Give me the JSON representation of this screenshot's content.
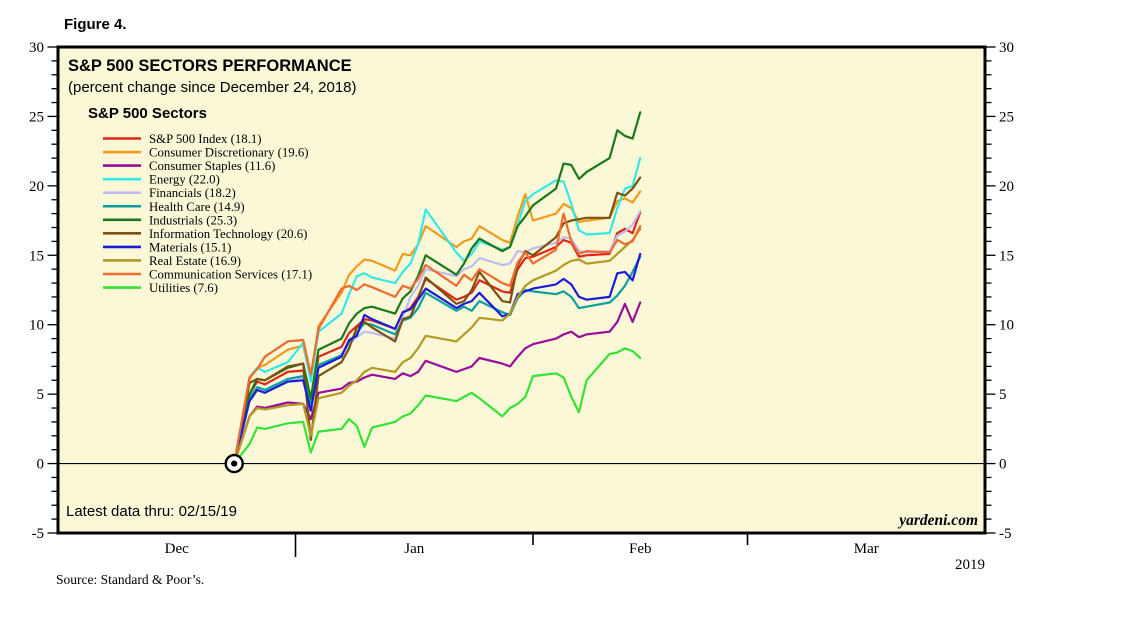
{
  "figure_label": "Figure 4.",
  "chart_data": {
    "type": "line",
    "title": "S&P 500 SECTORS PERFORMANCE",
    "subtitle": "(percent change since December 24, 2018)",
    "legend_title": "S&P 500 Sectors",
    "footnote": "Latest data thru: 02/15/19",
    "brand": "yardeni.com",
    "source": "Source: Standard & Poor’s.",
    "year_label": "2019",
    "background_color": "#FBF8D8",
    "grid": false,
    "legend_position": "top-left-inside",
    "y_axis": {
      "min": -5,
      "max": 30,
      "major_step": 5,
      "minor_step": 1,
      "major_labels": [
        -5,
        0,
        5,
        10,
        15,
        20,
        25,
        30
      ],
      "labels_both_sides": true
    },
    "x_axis": {
      "month_labels": [
        "Dec",
        "Jan",
        "Feb",
        "Mar"
      ],
      "month_label_day_centers": [
        15.5,
        46.5,
        76,
        105.5
      ],
      "month_boundary_days": [
        31,
        62,
        90
      ],
      "days_total": 121,
      "zero_line": 0
    },
    "origin_marker": {
      "date": "12/24",
      "value": 0
    },
    "x_trading_dates": [
      "12/24",
      "12/26",
      "12/27",
      "12/28",
      "12/31",
      "01/02",
      "01/03",
      "01/04",
      "01/07",
      "01/08",
      "01/09",
      "01/10",
      "01/11",
      "01/14",
      "01/15",
      "01/16",
      "01/17",
      "01/18",
      "01/22",
      "01/23",
      "01/24",
      "01/25",
      "01/28",
      "01/29",
      "01/30",
      "01/31",
      "02/01",
      "02/04",
      "02/05",
      "02/06",
      "02/07",
      "02/08",
      "02/11",
      "02/12",
      "02/13",
      "02/14",
      "02/15"
    ],
    "x_days": [
      23,
      25,
      26,
      27,
      30,
      32,
      33,
      34,
      37,
      38,
      39,
      40,
      41,
      44,
      45,
      46,
      47,
      48,
      52,
      53,
      54,
      55,
      58,
      59,
      60,
      61,
      62,
      65,
      66,
      67,
      68,
      69,
      72,
      73,
      74,
      75,
      76
    ],
    "series": [
      {
        "slug": "sp500-index",
        "name": "S&P 500 Index",
        "label": "S&P 500 Index (18.1)",
        "final": 18.1,
        "color": "#E02517",
        "values": [
          0,
          5.0,
          5.9,
          5.7,
          6.6,
          6.7,
          4.2,
          7.7,
          8.4,
          9.4,
          9.9,
          10.4,
          10.3,
          9.7,
          10.9,
          11.2,
          12.0,
          13.3,
          11.8,
          12.0,
          12.3,
          13.2,
          12.4,
          12.3,
          14.0,
          14.8,
          14.9,
          15.6,
          16.1,
          15.9,
          14.9,
          15.0,
          15.1,
          16.6,
          16.9,
          16.6,
          18.1
        ]
      },
      {
        "slug": "consumer-discretionary",
        "name": "Consumer Discretionary",
        "label": "Consumer Discretionary (19.6)",
        "final": 19.6,
        "color": "#F19A1B",
        "values": [
          0,
          6.1,
          6.9,
          7.1,
          8.2,
          8.5,
          6.1,
          9.9,
          12.3,
          13.6,
          14.2,
          14.7,
          14.6,
          13.9,
          15.1,
          15.0,
          15.8,
          17.1,
          15.6,
          16.0,
          16.2,
          17.1,
          16.1,
          15.9,
          17.8,
          19.4,
          17.5,
          18.0,
          18.7,
          18.4,
          17.4,
          17.5,
          17.7,
          18.9,
          19.1,
          18.8,
          19.6
        ]
      },
      {
        "slug": "consumer-staples",
        "name": "Consumer Staples",
        "label": "Consumer Staples (11.6)",
        "final": 11.6,
        "color": "#9A0C9A",
        "values": [
          0,
          3.4,
          4.1,
          4.0,
          4.4,
          4.3,
          3.2,
          5.1,
          5.4,
          5.8,
          5.9,
          6.2,
          6.4,
          6.1,
          6.5,
          6.3,
          6.6,
          7.4,
          6.6,
          6.8,
          7.0,
          7.6,
          7.2,
          7.0,
          7.7,
          8.3,
          8.6,
          9.0,
          9.3,
          9.5,
          9.1,
          9.3,
          9.5,
          10.2,
          11.5,
          10.2,
          11.6
        ]
      },
      {
        "slug": "energy",
        "name": "Energy",
        "label": "Energy (22.0)",
        "final": 22.0,
        "color": "#35E8E8",
        "values": [
          0,
          6.2,
          6.9,
          6.6,
          7.3,
          8.7,
          5.9,
          9.5,
          10.8,
          12.2,
          13.5,
          13.7,
          13.4,
          13.0,
          13.8,
          14.4,
          15.8,
          18.3,
          15.2,
          14.6,
          15.1,
          16.0,
          15.4,
          15.6,
          17.2,
          18.9,
          19.4,
          20.4,
          20.3,
          18.7,
          16.8,
          16.5,
          16.6,
          18.4,
          19.8,
          20.0,
          22.0
        ]
      },
      {
        "slug": "financials",
        "name": "Financials",
        "label": "Financials (18.2)",
        "final": 18.2,
        "color": "#BFBCF2",
        "values": [
          0,
          4.7,
          5.5,
          5.3,
          6.0,
          6.2,
          4.1,
          7.1,
          7.8,
          8.6,
          9.1,
          9.5,
          9.4,
          9.0,
          10.5,
          12.0,
          12.8,
          14.0,
          13.5,
          14.0,
          14.2,
          14.8,
          14.3,
          14.4,
          15.3,
          15.2,
          15.5,
          15.9,
          16.3,
          16.2,
          15.3,
          15.2,
          15.3,
          16.4,
          16.7,
          17.2,
          18.2
        ]
      },
      {
        "slug": "health-care",
        "name": "Health Care",
        "label": "Health Care (14.9)",
        "final": 14.9,
        "color": "#0AA0A0",
        "values": [
          0,
          4.7,
          5.5,
          5.3,
          6.1,
          6.3,
          4.4,
          7.1,
          7.8,
          8.8,
          9.4,
          10.1,
          10.0,
          9.3,
          10.3,
          10.5,
          11.2,
          12.3,
          11.0,
          11.3,
          11.0,
          11.7,
          10.9,
          10.7,
          11.9,
          12.5,
          12.4,
          12.2,
          12.4,
          12.0,
          11.2,
          11.3,
          11.6,
          12.1,
          12.8,
          13.8,
          14.9
        ]
      },
      {
        "slug": "industrials",
        "name": "Industrials",
        "label": "Industrials (25.3)",
        "final": 25.3,
        "color": "#1B781B",
        "values": [
          0,
          5.0,
          6.1,
          6.0,
          6.9,
          7.2,
          4.7,
          8.2,
          9.0,
          10.1,
          10.8,
          11.2,
          11.3,
          10.8,
          11.9,
          12.4,
          13.5,
          15.0,
          13.6,
          14.4,
          15.5,
          16.2,
          15.3,
          15.6,
          17.1,
          17.8,
          18.6,
          19.8,
          21.6,
          21.5,
          20.5,
          21.0,
          22.0,
          24.0,
          23.6,
          23.4,
          25.3
        ]
      },
      {
        "slug": "information-technology",
        "name": "Information Technology",
        "label": "Information Technology (20.6)",
        "final": 20.6,
        "color": "#7D5010",
        "values": [
          0,
          5.8,
          6.1,
          6.0,
          7.0,
          7.2,
          1.7,
          6.3,
          7.3,
          8.3,
          9.8,
          10.2,
          9.8,
          8.8,
          10.4,
          10.6,
          11.9,
          13.4,
          11.5,
          11.7,
          12.5,
          13.8,
          11.7,
          11.6,
          14.3,
          15.3,
          15.0,
          16.3,
          17.3,
          17.5,
          17.6,
          17.7,
          17.7,
          19.5,
          19.3,
          19.8,
          20.6
        ]
      },
      {
        "slug": "materials",
        "name": "Materials",
        "label": "Materials (15.1)",
        "final": 15.1,
        "color": "#1B1BD8",
        "values": [
          0,
          4.5,
          5.3,
          5.1,
          5.9,
          6.0,
          3.8,
          6.9,
          7.7,
          8.9,
          9.2,
          10.7,
          10.4,
          9.7,
          10.9,
          11.1,
          11.8,
          12.6,
          11.2,
          11.5,
          11.7,
          12.3,
          10.6,
          10.8,
          12.2,
          12.4,
          12.6,
          12.9,
          13.3,
          12.9,
          12.0,
          11.8,
          12.0,
          13.7,
          13.8,
          13.2,
          15.1
        ]
      },
      {
        "slug": "real-estate",
        "name": "Real Estate",
        "label": "Real Estate (16.9)",
        "final": 16.9,
        "color": "#B29A23",
        "values": [
          0,
          3.4,
          4.0,
          3.9,
          4.2,
          4.3,
          2.0,
          4.7,
          5.1,
          5.6,
          6.0,
          6.6,
          6.9,
          6.6,
          7.3,
          7.6,
          8.3,
          9.2,
          8.8,
          9.3,
          9.8,
          10.5,
          10.3,
          10.8,
          12.0,
          12.8,
          13.2,
          13.9,
          14.3,
          14.6,
          14.7,
          14.4,
          14.6,
          15.1,
          15.6,
          16.1,
          16.9
        ]
      },
      {
        "slug": "communication-services",
        "name": "Communication Services",
        "label": "Communication Services (17.1)",
        "final": 17.1,
        "color": "#EF6A30",
        "values": [
          0,
          6.2,
          6.8,
          7.7,
          8.8,
          8.9,
          6.4,
          9.7,
          12.6,
          12.8,
          12.5,
          12.9,
          12.7,
          12.0,
          12.8,
          12.6,
          13.3,
          14.3,
          12.8,
          13.6,
          13.2,
          14.0,
          13.0,
          12.8,
          14.5,
          15.2,
          14.4,
          15.4,
          18.0,
          16.0,
          15.1,
          15.3,
          15.2,
          16.1,
          15.8,
          16.0,
          17.1
        ]
      },
      {
        "slug": "utilities",
        "name": "Utilities",
        "label": "Utilities (7.6)",
        "final": 7.6,
        "color": "#35E235",
        "values": [
          0,
          1.4,
          2.6,
          2.5,
          2.9,
          3.0,
          0.8,
          2.3,
          2.5,
          3.2,
          2.7,
          1.2,
          2.6,
          3.0,
          3.4,
          3.6,
          4.2,
          4.9,
          4.5,
          4.8,
          5.1,
          4.7,
          3.4,
          4.0,
          4.3,
          4.8,
          6.3,
          6.5,
          6.2,
          4.8,
          3.7,
          6.0,
          7.9,
          8.0,
          8.3,
          8.1,
          7.6
        ]
      }
    ]
  }
}
